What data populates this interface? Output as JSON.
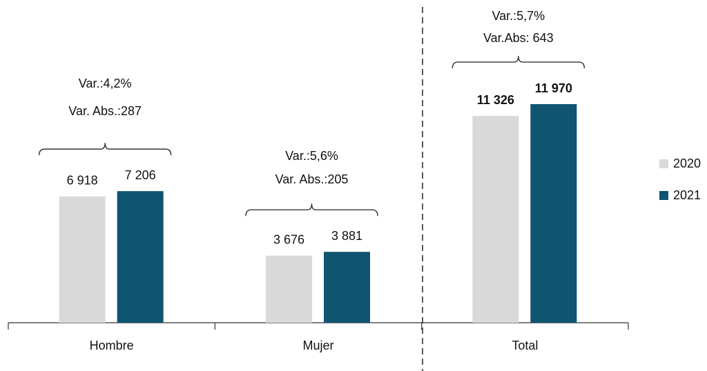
{
  "chart_data": {
    "type": "bar",
    "categories": [
      "Hombre",
      "Mujer",
      "Total"
    ],
    "series": [
      {
        "name": "2020",
        "color": "#d9d9d9",
        "values": [
          6918,
          3676,
          11326
        ],
        "value_labels": [
          "6 918",
          "3 676",
          "11 326"
        ]
      },
      {
        "name": "2021",
        "color": "#0f5470",
        "values": [
          7206,
          3881,
          11970
        ],
        "value_labels": [
          "7 206",
          "3 881",
          "11 970"
        ]
      }
    ],
    "annotations": [
      {
        "lines": [
          "Var.:4,2%",
          "Var. Abs.:287"
        ]
      },
      {
        "lines": [
          "Var.:5,6%",
          "Var. Abs.:205"
        ]
      },
      {
        "lines": [
          "Var.:5,7%",
          "Var.Abs: 643"
        ]
      }
    ]
  }
}
